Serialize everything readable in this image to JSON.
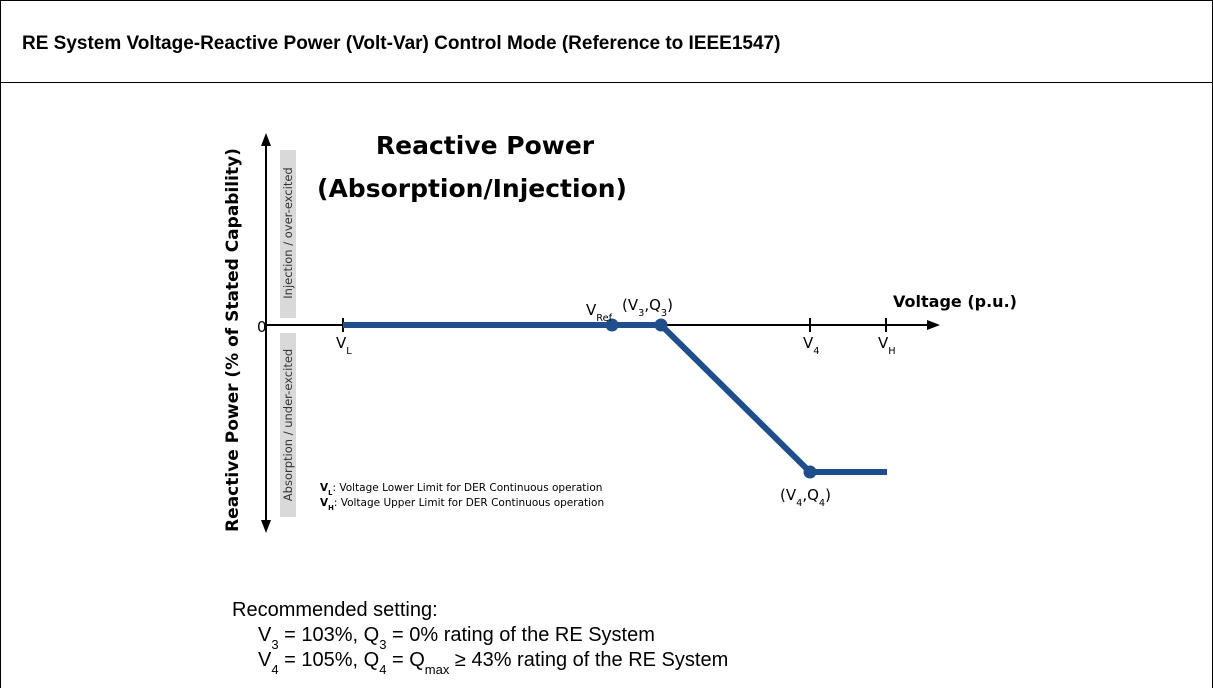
{
  "header": {
    "title": "RE System Voltage-Reactive Power (Volt-Var) Control Mode (Reference to IEEE1547)"
  },
  "diagram": {
    "title_line1": "Reactive Power",
    "title_line2": "(Absorption/Injection)",
    "y_axis_label": "Reactive Power (% of Stated Capability)",
    "upper_band": "Injection / over-excited",
    "lower_band": "Absorption / under-excited",
    "origin": "0",
    "x_axis_label": "Voltage (p.u.)",
    "points": {
      "vl": [
        {
          "text": "V"
        },
        {
          "sub": "L"
        }
      ],
      "vref": [
        {
          "text": "V"
        },
        {
          "sub": "Ref"
        }
      ],
      "v3q3": [
        {
          "text": "(V"
        },
        {
          "sub": "3"
        },
        {
          "text": ",Q"
        },
        {
          "sub": "3"
        },
        {
          "text": ")"
        }
      ],
      "v4": [
        {
          "text": "V"
        },
        {
          "sub": "4"
        }
      ],
      "vh": [
        {
          "text": "V"
        },
        {
          "sub": "H"
        }
      ],
      "v4q4": [
        {
          "text": "(V"
        },
        {
          "sub": "4"
        },
        {
          "text": ",Q"
        },
        {
          "sub": "4"
        },
        {
          "text": ")"
        }
      ]
    },
    "notes": [
      [
        {
          "text": "V"
        },
        {
          "sub": "L"
        },
        {
          "text": ": Voltage Lower Limit for DER Continuous operation"
        }
      ],
      [
        {
          "text": "V"
        },
        {
          "sub": "H"
        },
        {
          "text": ": Voltage Upper Limit for DER Continuous operation"
        }
      ]
    ]
  },
  "recommendation": {
    "heading": "Recommended setting:",
    "lines": [
      [
        {
          "text": "V"
        },
        {
          "sub": "3"
        },
        {
          "text": " = 103%, Q"
        },
        {
          "sub": "3"
        },
        {
          "text": " = 0% rating of the RE System"
        }
      ],
      [
        {
          "text": "V"
        },
        {
          "sub": "4"
        },
        {
          "text": " = 105%, Q"
        },
        {
          "sub": "4"
        },
        {
          "text": " = Q"
        },
        {
          "sub": "max"
        },
        {
          "text": " ≥ 43% rating of the RE System"
        }
      ]
    ]
  }
}
